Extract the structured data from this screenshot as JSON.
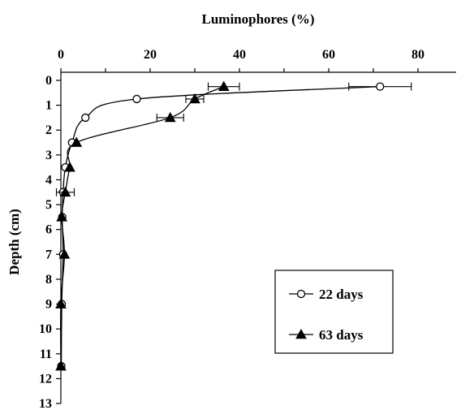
{
  "chart_data": {
    "type": "scatter",
    "xlabel": "Luminophores (%)",
    "ylabel": "Depth (cm)",
    "x_axis_position": "top",
    "y_axis_inverted": true,
    "xlim": [
      0,
      90
    ],
    "ylim": [
      0,
      13
    ],
    "xticks": [
      "0",
      "20",
      "40",
      "60",
      "80"
    ],
    "yticks": [
      "0",
      "1",
      "2",
      "3",
      "4",
      "5",
      "6",
      "7",
      "8",
      "9",
      "10",
      "11",
      "12",
      "13"
    ],
    "grid": false,
    "legend_position": "bottom-right",
    "series": [
      {
        "name": "22 days",
        "marker": "open-circle",
        "points": [
          {
            "x": 71.5,
            "y": 0.25,
            "xerr": 7
          },
          {
            "x": 17,
            "y": 0.75
          },
          {
            "x": 5.5,
            "y": 1.5
          },
          {
            "x": 2.5,
            "y": 2.5
          },
          {
            "x": 1.0,
            "y": 3.5
          },
          {
            "x": 0.5,
            "y": 4.5
          },
          {
            "x": 0.3,
            "y": 5.5
          },
          {
            "x": 0.5,
            "y": 7.0
          },
          {
            "x": 0.2,
            "y": 9.0
          },
          {
            "x": 0.1,
            "y": 11.5
          }
        ]
      },
      {
        "name": "63 days",
        "marker": "filled-triangle",
        "points": [
          {
            "x": 36.5,
            "y": 0.25,
            "xerr": 3.5
          },
          {
            "x": 30,
            "y": 0.75,
            "xerr": 2
          },
          {
            "x": 24.5,
            "y": 1.5,
            "xerr": 3
          },
          {
            "x": 3.5,
            "y": 2.5
          },
          {
            "x": 2.0,
            "y": 3.5
          },
          {
            "x": 1.0,
            "y": 4.5,
            "xerr": 2
          },
          {
            "x": 0.2,
            "y": 5.5
          },
          {
            "x": 0.8,
            "y": 7.0
          },
          {
            "x": 0.0,
            "y": 9.0
          },
          {
            "x": 0.0,
            "y": 11.5
          }
        ]
      }
    ]
  }
}
